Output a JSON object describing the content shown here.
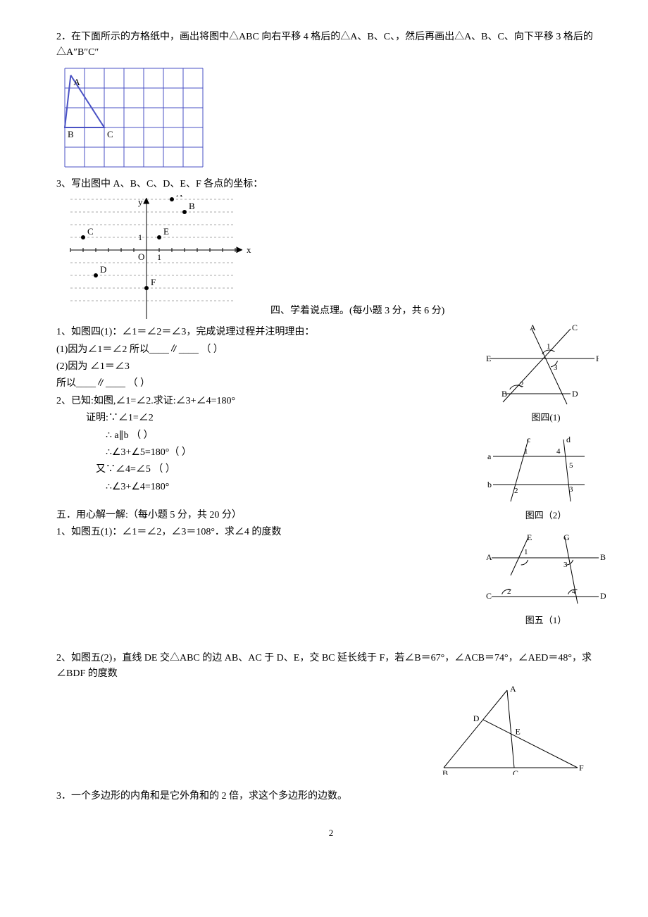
{
  "q2": {
    "text": "2．在下面所示的方格纸中，画出将图中△ABC 向右平移 4 格后的△A、B、C、，然后再画出△A、B、C、向下平移 3 格后的△A″B″C″",
    "grid": {
      "cols": 7,
      "rows": 5,
      "cell": 28,
      "line_color": "#4a52c4",
      "line_width": 1,
      "labels": {
        "A": "A",
        "B": "B",
        "C": "C"
      }
    }
  },
  "q3": {
    "text": "3、写出图中 A、B、C、D、E、F 各点的坐标：",
    "plot": {
      "cell": 18,
      "cols": 14,
      "rows": 9,
      "axis_color": "#000",
      "grid_color": "#aaa",
      "tick_labels": {
        "one_x": "1",
        "one_y": "1",
        "origin": "O",
        "xlab": "x",
        "ylab": "y"
      },
      "points": {
        "A": {
          "x": 2,
          "y": 4,
          "label": "A"
        },
        "B": {
          "x": 3,
          "y": 3,
          "label": "B"
        },
        "C": {
          "x": -5,
          "y": 1,
          "label": "C"
        },
        "E": {
          "x": 1,
          "y": 1,
          "label": "E"
        },
        "D": {
          "x": -4,
          "y": -2,
          "label": "D"
        },
        "F": {
          "x": 0,
          "y": -3,
          "label": "F"
        }
      },
      "section4_title": "四、学着说点理。(每小题 3 分，共 6 分)"
    }
  },
  "sec4": {
    "q1_intro": "1、如图四(1)：∠1＝∠2＝∠3，完成说理过程并注明理由：",
    "q1_line1_a": "(1)因为∠1＝∠2 所以",
    "q1_line1_b": "∥",
    "q1_paren_long": "  （                                 ）",
    "q1_line2": "(2)因为 ∠1＝∠3",
    "q1_line3_a": "所以",
    "q1_line3_b": "∥",
    "q1_paren_med": "  （                       ）",
    "q2_intro": "2、已知:如图,∠1=∠2.求证:∠3+∠4=180°",
    "q2_l1": "证明:∵∠1=∠2",
    "q2_l2": "∴ a∥b   （                           ）",
    "q2_l3": "∴∠3+∠5=180°（                               ）",
    "q2_l4": "又∵∠4=∠5 （                           ）",
    "q2_l5": "∴∠3+∠4=180°"
  },
  "fig41": {
    "labels": {
      "A": "A",
      "B": "B",
      "C": "C",
      "D": "D",
      "E": "E",
      "F": "F",
      "a1": "1",
      "a2": "2",
      "a3": "3"
    },
    "caption": "图四(1)",
    "line_color": "#000"
  },
  "fig42": {
    "labels": {
      "a": "a",
      "b": "b",
      "c": "c",
      "d": "d",
      "a1": "1",
      "a2": "2",
      "a3": "3",
      "a4": "4",
      "a5": "5"
    },
    "caption": "图四（2）",
    "line_color": "#000"
  },
  "sec5": {
    "title": "五．用心解一解:（每小题 5 分，共 20 分）",
    "q1": "1、如图五(1)：∠1＝∠2，∠3＝108°．求∠4 的度数"
  },
  "fig51": {
    "labels": {
      "A": "A",
      "B": "B",
      "C": "C",
      "D": "D",
      "E": "E",
      "G": "G",
      "a1": "1",
      "a2": "2",
      "a3": "3",
      "a4": "4"
    },
    "caption": "图五（1）",
    "line_color": "#000"
  },
  "q52": {
    "text": "2、如图五(2)，直线 DE 交△ABC 的边 AB、AC 于 D、E，交 BC 延长线于 F，若∠B＝67°，∠ACB＝74°，∠AED＝48°，求∠BDF 的度数"
  },
  "fig52": {
    "labels": {
      "A": "A",
      "B": "B",
      "C": "C",
      "D": "D",
      "E": "E",
      "F": "F"
    },
    "line_color": "#000"
  },
  "q53": {
    "text": "3．一个多边形的内角和是它外角和的 2 倍，求这个多边形的边数。"
  },
  "page_num": "2"
}
